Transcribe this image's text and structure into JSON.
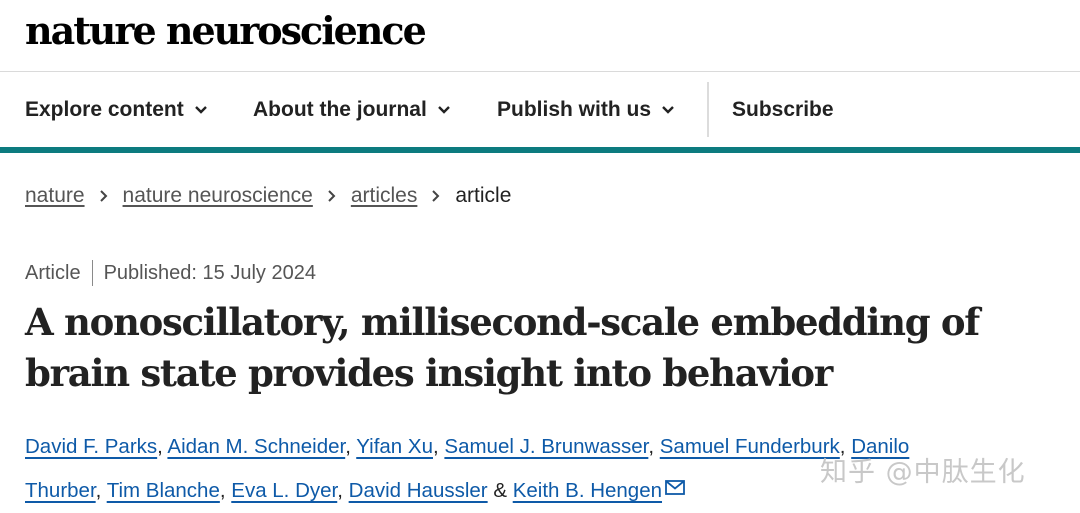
{
  "site": {
    "logo": "nature neuroscience"
  },
  "nav": {
    "items": [
      {
        "label": "Explore content"
      },
      {
        "label": "About the journal"
      },
      {
        "label": "Publish with us"
      }
    ],
    "subscribe": "Subscribe"
  },
  "breadcrumb": {
    "links": [
      "nature",
      "nature neuroscience",
      "articles"
    ],
    "current": "article"
  },
  "article": {
    "type": "Article",
    "published": "Published: 15 July 2024",
    "title": "A nonoscillatory, millisecond-scale embedding of brain state provides insight into behavior",
    "authors": [
      "David F. Parks",
      "Aidan M. Schneider",
      "Yifan Xu",
      "Samuel J. Brunwasser",
      "Samuel Funderburk",
      "Danilo Thurber",
      "Tim Blanche",
      "Eva L. Dyer",
      "David Haussler",
      "Keith B. Hengen"
    ],
    "author_separator": ", ",
    "author_last_joiner": " & "
  },
  "watermark": "知乎 @中肽生化",
  "colors": {
    "accent": "#0c7b7f",
    "link": "#0e5aa8",
    "text": "#222222",
    "muted": "#555555"
  }
}
